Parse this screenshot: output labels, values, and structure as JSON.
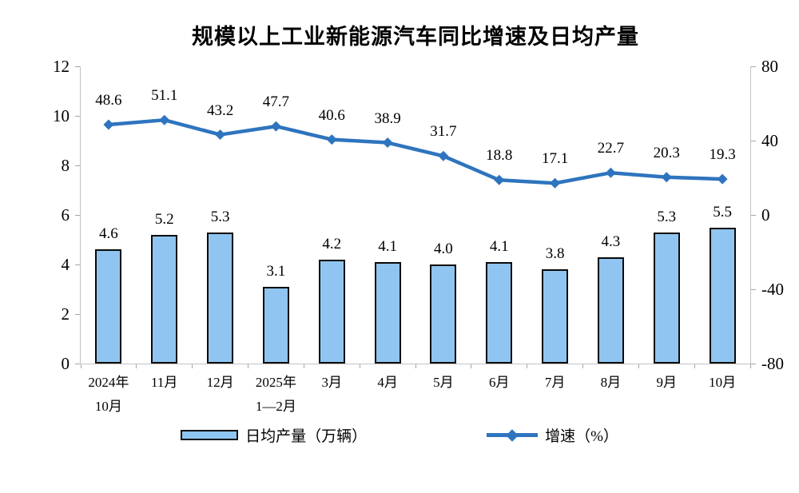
{
  "colors": {
    "bar_fill": "#8FC5F0",
    "bar_border": "#0A0A0A",
    "line": "#2E74BE",
    "axis_line": "#C3C3C3",
    "tick": "#A6A6A6",
    "text": "#000000"
  },
  "chart_data": {
    "type": "bar",
    "title": "规模以上工业新能源汽车同比增速及日均产量",
    "categories": [
      "2024年\n10月",
      "11月",
      "12月",
      "2025年\n1—2月",
      "3月",
      "4月",
      "5月",
      "6月",
      "7月",
      "8月",
      "9月",
      "10月"
    ],
    "series": [
      {
        "name": "日均产量（万辆）",
        "type": "bar",
        "axis": "left",
        "values": [
          4.6,
          5.2,
          5.3,
          3.1,
          4.2,
          4.1,
          4.0,
          4.1,
          3.8,
          4.3,
          5.3,
          5.5
        ]
      },
      {
        "name": "增速（%）",
        "type": "line",
        "axis": "right",
        "values": [
          48.6,
          51.1,
          43.2,
          47.7,
          40.6,
          38.9,
          31.7,
          18.8,
          17.1,
          22.7,
          20.3,
          19.3
        ]
      }
    ],
    "left_axis": {
      "range": [
        0,
        12
      ],
      "ticks": [
        0,
        2,
        4,
        6,
        8,
        10,
        12
      ]
    },
    "right_axis": {
      "range": [
        -80,
        80
      ],
      "ticks": [
        -80,
        -40,
        0,
        40,
        80
      ]
    },
    "grid": false,
    "legend_position": "bottom"
  }
}
